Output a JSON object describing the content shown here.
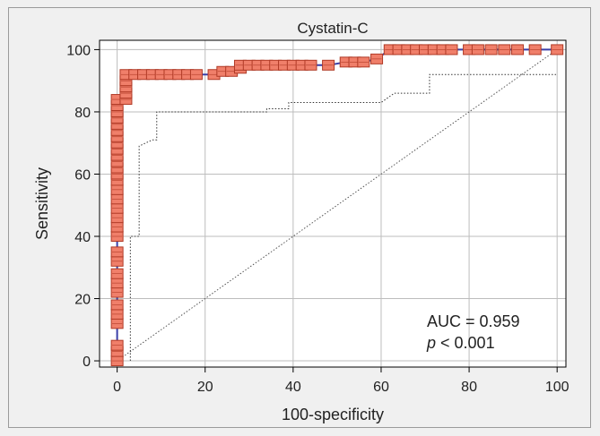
{
  "chart_data": {
    "type": "line",
    "title": "Cystatin-C",
    "xlabel": "100-specificity",
    "ylabel": "Sensitivity",
    "xlim": [
      -4,
      102
    ],
    "ylim": [
      -2,
      103
    ],
    "xticks": [
      0,
      20,
      40,
      60,
      80,
      100
    ],
    "yticks": [
      0,
      20,
      40,
      60,
      80,
      100
    ],
    "grid": true,
    "annotations": {
      "auc": "AUC = 0.959",
      "p_symbol": "p",
      "p_rest": " < 0.001"
    },
    "colors": {
      "background": "#f0f0f0",
      "plot_background": "#ffffff",
      "grid": "#bdbdbd",
      "curve_line": "#3b3fa8",
      "marker_fill": "#f07f6a",
      "marker_stroke": "#b03a26",
      "ci_line": "#333333",
      "diagonal": "#555555"
    },
    "series": [
      {
        "kind": "roc",
        "points": [
          [
            0,
            0
          ],
          [
            0,
            3
          ],
          [
            0,
            5
          ],
          [
            0,
            12
          ],
          [
            0,
            15
          ],
          [
            0,
            18
          ],
          [
            0,
            22
          ],
          [
            0,
            25
          ],
          [
            0,
            28
          ],
          [
            0,
            32
          ],
          [
            0,
            35
          ],
          [
            0,
            40
          ],
          [
            0,
            43
          ],
          [
            0,
            46
          ],
          [
            0,
            49
          ],
          [
            0,
            52
          ],
          [
            0,
            55
          ],
          [
            0,
            58
          ],
          [
            0,
            60
          ],
          [
            0,
            62
          ],
          [
            0,
            64
          ],
          [
            0,
            66
          ],
          [
            0,
            68
          ],
          [
            0,
            70
          ],
          [
            0,
            72
          ],
          [
            0,
            74
          ],
          [
            0,
            76
          ],
          [
            0,
            78
          ],
          [
            0,
            80
          ],
          [
            0,
            82
          ],
          [
            0,
            84
          ],
          [
            2,
            84
          ],
          [
            2,
            86
          ],
          [
            2,
            88
          ],
          [
            2,
            90
          ],
          [
            2,
            92
          ],
          [
            4,
            92
          ],
          [
            6,
            92
          ],
          [
            8,
            92
          ],
          [
            10,
            92
          ],
          [
            12,
            92
          ],
          [
            14,
            92
          ],
          [
            16,
            92
          ],
          [
            18,
            92
          ],
          [
            22,
            92
          ],
          [
            24,
            93
          ],
          [
            26,
            93
          ],
          [
            28,
            94
          ],
          [
            28,
            95
          ],
          [
            30,
            95
          ],
          [
            32,
            95
          ],
          [
            34,
            95
          ],
          [
            36,
            95
          ],
          [
            38,
            95
          ],
          [
            40,
            95
          ],
          [
            42,
            95
          ],
          [
            44,
            95
          ],
          [
            48,
            95
          ],
          [
            52,
            96
          ],
          [
            54,
            96
          ],
          [
            56,
            96
          ],
          [
            59,
            97
          ],
          [
            62,
            100
          ],
          [
            64,
            100
          ],
          [
            66,
            100
          ],
          [
            68,
            100
          ],
          [
            70,
            100
          ],
          [
            72,
            100
          ],
          [
            74,
            100
          ],
          [
            76,
            100
          ],
          [
            80,
            100
          ],
          [
            82,
            100
          ],
          [
            85,
            100
          ],
          [
            88,
            100
          ],
          [
            91,
            100
          ],
          [
            95,
            100
          ],
          [
            100,
            100
          ]
        ]
      },
      {
        "kind": "confidence-lower",
        "points": [
          [
            3,
            0
          ],
          [
            3,
            40
          ],
          [
            5,
            40
          ],
          [
            5,
            69
          ],
          [
            8,
            71
          ],
          [
            9,
            71
          ],
          [
            9,
            80
          ],
          [
            34,
            80
          ],
          [
            34,
            81
          ],
          [
            39,
            81
          ],
          [
            39,
            83
          ],
          [
            60,
            83
          ],
          [
            63,
            86
          ],
          [
            71,
            86
          ],
          [
            71,
            92
          ],
          [
            100,
            92
          ]
        ]
      },
      {
        "kind": "reference",
        "points": [
          [
            0,
            0
          ],
          [
            100,
            100
          ]
        ]
      }
    ]
  }
}
